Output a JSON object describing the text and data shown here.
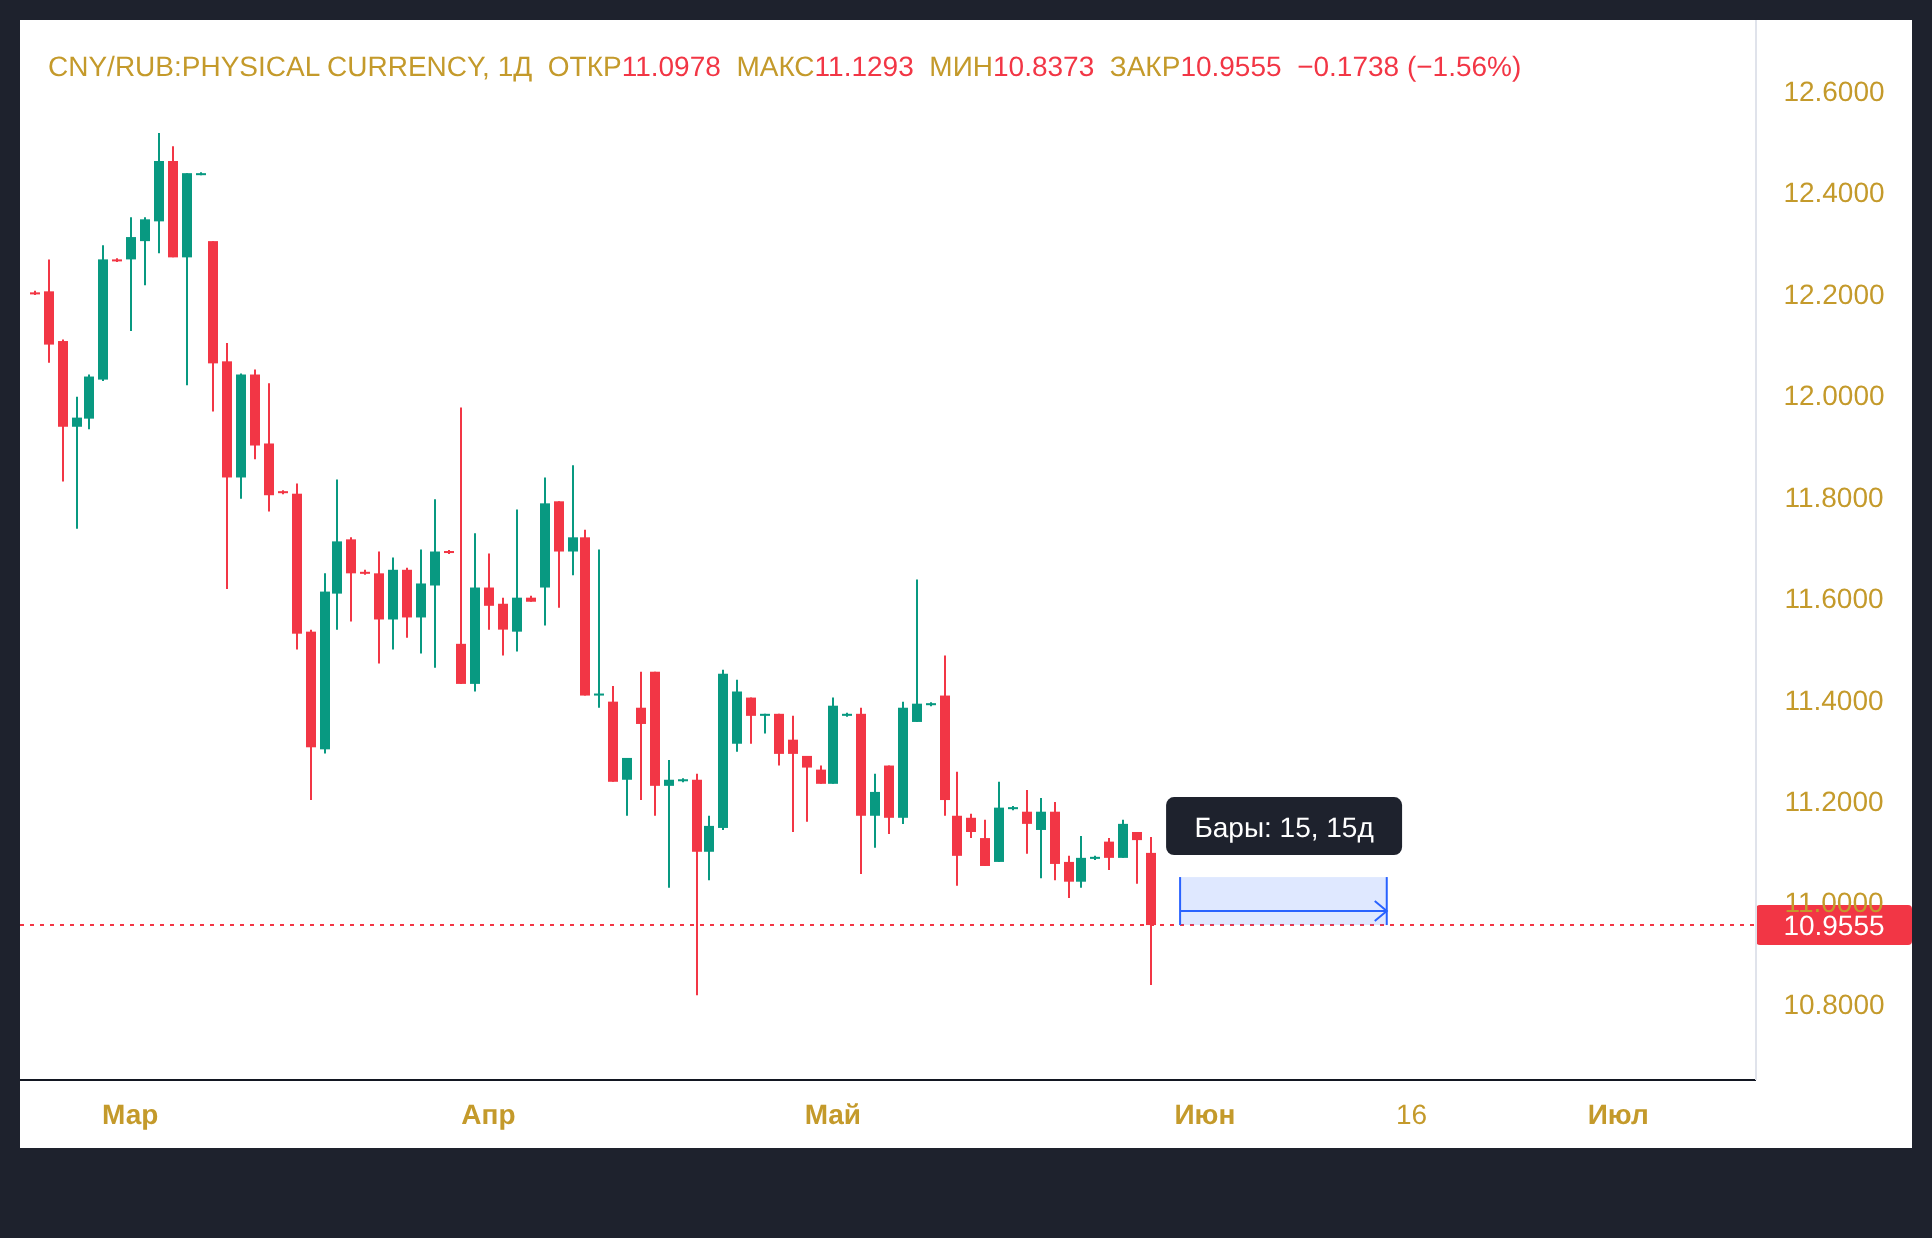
{
  "chart_data": {
    "type": "candlestick",
    "title": "CNY/RUB:PHYSICAL CURRENCY, 1Д",
    "subtitle": "ОТКР11.0978  МАКС11.1293  МИН10.8373  ЗАКР10.9555  −0.1738 (−1.56%)",
    "categories": [
      null,
      null,
      null,
      null,
      null,
      null,
      null,
      "Мар",
      null,
      null,
      null,
      null,
      null,
      null,
      null,
      null,
      null,
      null,
      null,
      null,
      null,
      null,
      null,
      null,
      null,
      null,
      null,
      null,
      null,
      null,
      null,
      null,
      null,
      "Апр",
      null,
      null,
      null,
      null,
      null,
      null,
      null,
      null,
      null,
      null,
      null,
      null,
      null,
      null,
      null,
      null,
      null,
      null,
      null,
      null,
      null,
      null,
      null,
      null,
      "Май",
      null,
      null,
      null,
      null,
      null,
      null,
      null,
      null,
      null,
      null,
      null,
      null,
      null,
      null,
      null,
      null,
      null,
      null,
      null,
      null,
      null,
      null,
      null,
      null,
      null,
      null,
      "Июн",
      null,
      null,
      null,
      null,
      null,
      null,
      null,
      null,
      null,
      null,
      null,
      null,
      null,
      null,
      "16",
      null,
      null,
      null,
      null,
      null,
      null,
      null,
      null,
      null,
      null,
      null,
      null,
      null,
      null,
      "Июл",
      null,
      null,
      null,
      null,
      null,
      null,
      null,
      null,
      null
    ],
    "ohlc": [
      [
        12.203,
        12.206,
        12.198,
        12.199
      ],
      [
        12.205,
        12.268,
        12.064,
        12.1
      ],
      [
        12.107,
        12.11,
        11.83,
        11.938
      ],
      [
        11.938,
        11.997,
        11.737,
        11.956
      ],
      [
        11.954,
        12.041,
        11.933,
        12.037
      ],
      [
        12.031,
        12.296,
        12.028,
        12.268
      ],
      [
        12.268,
        12.27,
        12.263,
        12.265
      ],
      [
        12.268,
        12.351,
        12.127,
        12.312
      ],
      [
        12.304,
        12.351,
        12.217,
        12.347
      ],
      [
        12.343,
        12.517,
        12.28,
        12.462
      ],
      [
        12.462,
        12.491,
        12.272,
        12.272
      ],
      [
        12.272,
        12.438,
        12.02,
        12.438
      ],
      [
        12.436,
        12.44,
        12.434,
        12.438
      ],
      [
        12.304,
        12.304,
        11.968,
        12.063
      ],
      [
        12.067,
        12.103,
        11.618,
        11.838
      ],
      [
        11.838,
        12.043,
        11.796,
        12.041
      ],
      [
        12.041,
        12.051,
        11.874,
        11.901
      ],
      [
        11.905,
        12.024,
        11.771,
        11.803
      ],
      [
        11.811,
        11.813,
        11.805,
        11.807
      ],
      [
        11.806,
        11.826,
        11.499,
        11.53
      ],
      [
        11.534,
        11.538,
        11.202,
        11.306
      ],
      [
        11.302,
        11.649,
        11.294,
        11.613
      ],
      [
        11.609,
        11.834,
        11.538,
        11.712
      ],
      [
        11.716,
        11.72,
        11.554,
        11.649
      ],
      [
        11.652,
        11.656,
        11.646,
        11.648
      ],
      [
        11.649,
        11.692,
        11.471,
        11.558
      ],
      [
        11.558,
        11.68,
        11.499,
        11.656
      ],
      [
        11.656,
        11.66,
        11.522,
        11.562
      ],
      [
        11.562,
        11.696,
        11.491,
        11.629
      ],
      [
        11.625,
        11.795,
        11.463,
        11.692
      ],
      [
        11.693,
        11.695,
        11.687,
        11.689
      ],
      [
        11.51,
        11.976,
        11.431,
        11.431
      ],
      [
        11.431,
        11.728,
        11.416,
        11.621
      ],
      [
        11.621,
        11.688,
        11.538,
        11.585
      ],
      [
        11.589,
        11.601,
        11.487,
        11.538
      ],
      [
        11.534,
        11.775,
        11.495,
        11.601
      ],
      [
        11.601,
        11.605,
        11.593,
        11.593
      ],
      [
        11.621,
        11.838,
        11.546,
        11.787
      ],
      [
        11.791,
        11.791,
        11.581,
        11.692
      ],
      [
        11.692,
        11.862,
        11.645,
        11.72
      ],
      [
        11.72,
        11.735,
        11.408,
        11.408
      ],
      [
        11.408,
        11.696,
        11.384,
        11.412
      ],
      [
        11.396,
        11.427,
        11.238,
        11.238
      ],
      [
        11.242,
        11.285,
        11.171,
        11.285
      ],
      [
        11.384,
        11.455,
        11.202,
        11.352
      ],
      [
        11.455,
        11.455,
        11.171,
        11.23
      ],
      [
        11.23,
        11.281,
        11.029,
        11.242
      ],
      [
        11.239,
        11.245,
        11.237,
        11.243
      ],
      [
        11.242,
        11.254,
        10.817,
        11.1
      ],
      [
        11.1,
        11.171,
        11.044,
        11.151
      ],
      [
        11.147,
        11.459,
        11.143,
        11.451
      ],
      [
        11.313,
        11.439,
        11.297,
        11.416
      ],
      [
        11.404,
        11.404,
        11.313,
        11.368
      ],
      [
        11.368,
        11.372,
        11.333,
        11.372
      ],
      [
        11.372,
        11.372,
        11.27,
        11.293
      ],
      [
        11.321,
        11.368,
        11.139,
        11.293
      ],
      [
        11.289,
        11.289,
        11.159,
        11.266
      ],
      [
        11.262,
        11.27,
        11.234,
        11.234
      ],
      [
        11.234,
        11.404,
        11.234,
        11.388
      ],
      [
        11.368,
        11.374,
        11.366,
        11.372
      ],
      [
        11.372,
        11.384,
        11.056,
        11.171
      ],
      [
        11.171,
        11.254,
        11.108,
        11.218
      ],
      [
        11.27,
        11.27,
        11.135,
        11.167
      ],
      [
        11.167,
        11.396,
        11.155,
        11.384
      ],
      [
        11.356,
        11.637,
        11.356,
        11.392
      ],
      [
        11.389,
        11.395,
        11.387,
        11.393
      ],
      [
        11.408,
        11.487,
        11.171,
        11.202
      ],
      [
        11.171,
        11.258,
        11.033,
        11.092
      ],
      [
        11.167,
        11.175,
        11.127,
        11.139
      ],
      [
        11.127,
        11.163,
        11.072,
        11.072
      ],
      [
        11.08,
        11.238,
        11.08,
        11.187
      ],
      [
        11.184,
        11.19,
        11.182,
        11.188
      ],
      [
        11.179,
        11.222,
        11.096,
        11.155
      ],
      [
        11.143,
        11.206,
        11.048,
        11.179
      ],
      [
        11.179,
        11.198,
        11.044,
        11.076
      ],
      [
        11.08,
        11.092,
        11.009,
        11.041
      ],
      [
        11.041,
        11.131,
        11.029,
        11.088
      ],
      [
        11.086,
        11.092,
        11.084,
        11.09
      ],
      [
        11.12,
        11.127,
        11.064,
        11.088
      ],
      [
        11.088,
        11.163,
        11.088,
        11.155
      ],
      [
        11.139,
        11.139,
        11.037,
        11.123
      ],
      [
        11.0978,
        11.1293,
        10.8373,
        10.9555
      ],
      null,
      null,
      null,
      null,
      null,
      null,
      null,
      null,
      null,
      null,
      null,
      null,
      null,
      null,
      null,
      null,
      null,
      null,
      null,
      null,
      null,
      null,
      null,
      null,
      null,
      null,
      null,
      null,
      null,
      null,
      null,
      null,
      null,
      null,
      null,
      null,
      null,
      null,
      null,
      null,
      null,
      null,
      null
    ],
    "colors": [
      "#f23645",
      "#f23645",
      "#f23645",
      "#089981",
      "#089981",
      "#089981",
      "#f23645",
      "#089981",
      "#089981",
      "#089981",
      "#f23645",
      "#089981",
      "#089981",
      "#f23645",
      "#f23645",
      "#089981",
      "#f23645",
      "#f23645",
      "#f23645",
      "#f23645",
      "#f23645",
      "#089981",
      "#089981",
      "#f23645",
      "#f23645",
      "#f23645",
      "#089981",
      "#f23645",
      "#089981",
      "#089981",
      "#f23645",
      "#f23645",
      "#089981",
      "#f23645",
      "#f23645",
      "#089981",
      "#f23645",
      "#089981",
      "#f23645",
      "#089981",
      "#f23645",
      "#089981",
      "#f23645",
      "#089981",
      "#f23645",
      "#f23645",
      "#089981",
      "#089981",
      "#f23645",
      "#089981",
      "#089981",
      "#089981",
      "#f23645",
      "#089981",
      "#f23645",
      "#f23645",
      "#f23645",
      "#f23645",
      "#089981",
      "#089981",
      "#f23645",
      "#089981",
      "#f23645",
      "#089981",
      "#089981",
      "#089981",
      "#f23645",
      "#f23645",
      "#f23645",
      "#f23645",
      "#089981",
      "#089981",
      "#f23645",
      "#089981",
      "#f23645",
      "#f23645",
      "#089981",
      "#089981",
      "#f23645",
      "#089981",
      "#f23645",
      "#f23645",
      null,
      null,
      null,
      null,
      null,
      null,
      null,
      null,
      null,
      null,
      null,
      null,
      null,
      null,
      null,
      null,
      null,
      null,
      null,
      null,
      null,
      null,
      null,
      null,
      null,
      null,
      null,
      null,
      null,
      null,
      null,
      null,
      null,
      null,
      null,
      null,
      null,
      null,
      null,
      null,
      null,
      null,
      null
    ],
    "ylim": [
      10.65,
      12.74
    ],
    "yticks": [
      {
        "value": 10.8,
        "label": "10.8000"
      },
      {
        "value": 11,
        "label": "11.0000"
      },
      {
        "value": 11.2,
        "label": "11.2000"
      },
      {
        "value": 11.4,
        "label": "11.4000"
      },
      {
        "value": 11.6,
        "label": "11.6000"
      },
      {
        "value": 11.8,
        "label": "11.8000"
      },
      {
        "value": 12,
        "label": "12.0000"
      },
      {
        "value": 12.2,
        "label": "12.2000"
      },
      {
        "value": 12.4,
        "label": "12.4000"
      },
      {
        "value": 12.6,
        "label": "12.6000"
      }
    ],
    "ref_lines": [
      {
        "axis": "y",
        "value": 10.9555,
        "label": "10.9555",
        "color": "#f23645",
        "line_style": "dotted"
      }
    ],
    "annotations": [
      {
        "text": "Бары: 15, 15д",
        "y": 10.9555
      }
    ]
  }
}
